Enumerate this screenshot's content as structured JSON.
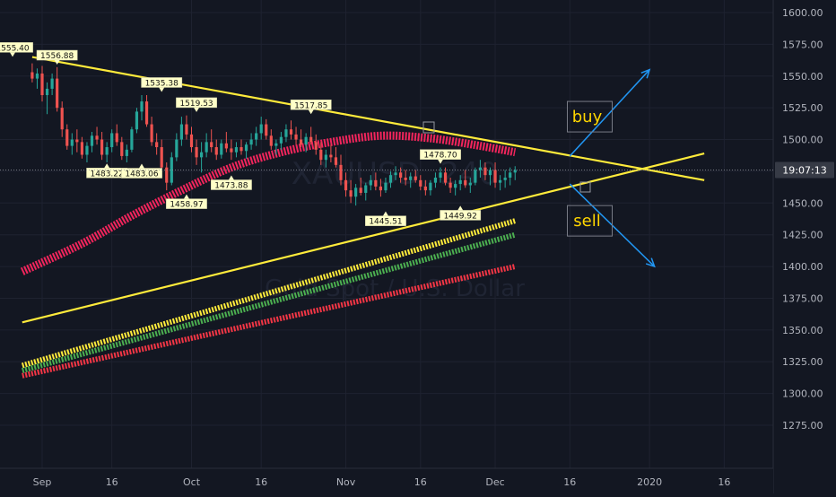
{
  "chart_data": {
    "type": "candlestick",
    "title": "",
    "xlabel": "",
    "ylabel": "",
    "ylim": [
      1263,
      1612
    ],
    "y_ticks": [
      "1600.00",
      "1575.00",
      "1550.00",
      "1525.00",
      "1500.00",
      "1475.00",
      "1450.00",
      "1425.00",
      "1400.00",
      "1375.00",
      "1350.00",
      "1325.00",
      "1300.00",
      "1275.00"
    ],
    "x_ticks": [
      {
        "label": "Sep",
        "day": 2
      },
      {
        "label": "16",
        "day": 16
      },
      {
        "label": "Oct",
        "day": 32
      },
      {
        "label": "16",
        "day": 46
      },
      {
        "label": "Nov",
        "day": 63
      },
      {
        "label": "16",
        "day": 78
      },
      {
        "label": "Dec",
        "day": 93
      },
      {
        "label": "16",
        "day": 108
      },
      {
        "label": "2020",
        "day": 124
      },
      {
        "label": "16",
        "day": 139
      }
    ],
    "current_price_label": "19:07:13",
    "current_price": 1476,
    "watermark": "XAUUSD, 240",
    "watermark_sub": "Gold Spot / U.S. Dollar",
    "annotations_price": [
      {
        "text": "1556.88",
        "day": 5,
        "value": 1556.88,
        "pos": "above"
      },
      {
        "text": "1535.38",
        "day": 26,
        "value": 1535.38,
        "pos": "above"
      },
      {
        "text": "1519.53",
        "day": 33,
        "value": 1519.53,
        "pos": "above"
      },
      {
        "text": "1517.85",
        "day": 56,
        "value": 1517.85,
        "pos": "above"
      },
      {
        "text": "1478.70",
        "day": 82,
        "value": 1478.7,
        "pos": "above"
      },
      {
        "text": "1483.22",
        "day": 15,
        "value": 1483.22,
        "pos": "below"
      },
      {
        "text": "1483.06",
        "day": 22,
        "value": 1483.06,
        "pos": "below"
      },
      {
        "text": "1473.88",
        "day": 40,
        "value": 1473.88,
        "pos": "below"
      },
      {
        "text": "1458.97",
        "day": 31,
        "value": 1458.97,
        "pos": "below"
      },
      {
        "text": "1445.51",
        "day": 71,
        "value": 1445.51,
        "pos": "below"
      },
      {
        "text": "1449.92",
        "day": 86,
        "value": 1449.92,
        "pos": "below"
      }
    ],
    "annotation_partial_left": "1555.40",
    "ohlc": [
      [
        0,
        1553,
        1560,
        1545,
        1548
      ],
      [
        1,
        1548,
        1556,
        1540,
        1552
      ],
      [
        2,
        1552,
        1558,
        1530,
        1535
      ],
      [
        3,
        1535,
        1545,
        1520,
        1540
      ],
      [
        4,
        1540,
        1552,
        1535,
        1548
      ],
      [
        5,
        1548,
        1557,
        1522,
        1525
      ],
      [
        6,
        1525,
        1530,
        1502,
        1508
      ],
      [
        7,
        1508,
        1512,
        1492,
        1495
      ],
      [
        8,
        1495,
        1505,
        1488,
        1500
      ],
      [
        9,
        1500,
        1508,
        1490,
        1498
      ],
      [
        10,
        1498,
        1502,
        1485,
        1488
      ],
      [
        11,
        1488,
        1498,
        1482,
        1495
      ],
      [
        12,
        1495,
        1506,
        1490,
        1503
      ],
      [
        13,
        1503,
        1510,
        1496,
        1500
      ],
      [
        14,
        1500,
        1506,
        1484,
        1488
      ],
      [
        15,
        1488,
        1498,
        1482,
        1494
      ],
      [
        16,
        1494,
        1508,
        1490,
        1505
      ],
      [
        17,
        1505,
        1512,
        1495,
        1498
      ],
      [
        18,
        1498,
        1502,
        1484,
        1487
      ],
      [
        19,
        1487,
        1496,
        1482,
        1492
      ],
      [
        20,
        1492,
        1510,
        1490,
        1508
      ],
      [
        21,
        1508,
        1525,
        1505,
        1522
      ],
      [
        22,
        1522,
        1535,
        1515,
        1530
      ],
      [
        23,
        1530,
        1535,
        1510,
        1512
      ],
      [
        24,
        1512,
        1518,
        1495,
        1498
      ],
      [
        25,
        1498,
        1505,
        1488,
        1494
      ],
      [
        26,
        1494,
        1500,
        1475,
        1478
      ],
      [
        27,
        1478,
        1482,
        1460,
        1466
      ],
      [
        28,
        1466,
        1490,
        1464,
        1486
      ],
      [
        29,
        1486,
        1505,
        1483,
        1500
      ],
      [
        30,
        1500,
        1518,
        1495,
        1512
      ],
      [
        31,
        1512,
        1519,
        1500,
        1504
      ],
      [
        32,
        1504,
        1510,
        1490,
        1494
      ],
      [
        33,
        1494,
        1500,
        1480,
        1486
      ],
      [
        34,
        1486,
        1498,
        1474,
        1490
      ],
      [
        35,
        1490,
        1505,
        1486,
        1498
      ],
      [
        36,
        1498,
        1508,
        1490,
        1494
      ],
      [
        37,
        1494,
        1500,
        1484,
        1488
      ],
      [
        38,
        1488,
        1500,
        1485,
        1497
      ],
      [
        39,
        1497,
        1506,
        1490,
        1493
      ],
      [
        40,
        1493,
        1500,
        1484,
        1490
      ],
      [
        41,
        1490,
        1498,
        1486,
        1494
      ],
      [
        42,
        1494,
        1500,
        1488,
        1491
      ],
      [
        43,
        1491,
        1498,
        1485,
        1496
      ],
      [
        44,
        1496,
        1505,
        1492,
        1500
      ],
      [
        45,
        1500,
        1510,
        1495,
        1505
      ],
      [
        46,
        1505,
        1518,
        1500,
        1512
      ],
      [
        47,
        1512,
        1516,
        1500,
        1503
      ],
      [
        48,
        1503,
        1508,
        1492,
        1495
      ],
      [
        49,
        1495,
        1500,
        1488,
        1497
      ],
      [
        50,
        1497,
        1506,
        1492,
        1502
      ],
      [
        51,
        1502,
        1512,
        1498,
        1508
      ],
      [
        52,
        1508,
        1515,
        1500,
        1504
      ],
      [
        53,
        1504,
        1510,
        1496,
        1500
      ],
      [
        54,
        1500,
        1508,
        1494,
        1496
      ],
      [
        55,
        1496,
        1505,
        1490,
        1502
      ],
      [
        56,
        1502,
        1510,
        1496,
        1498
      ],
      [
        57,
        1498,
        1504,
        1488,
        1492
      ],
      [
        58,
        1492,
        1498,
        1480,
        1484
      ],
      [
        59,
        1484,
        1492,
        1478,
        1488
      ],
      [
        60,
        1488,
        1496,
        1482,
        1486
      ],
      [
        61,
        1486,
        1494,
        1478,
        1480
      ],
      [
        62,
        1480,
        1488,
        1464,
        1468
      ],
      [
        63,
        1468,
        1474,
        1455,
        1460
      ],
      [
        64,
        1460,
        1468,
        1450,
        1455
      ],
      [
        65,
        1455,
        1465,
        1448,
        1462
      ],
      [
        66,
        1462,
        1470,
        1456,
        1458
      ],
      [
        67,
        1458,
        1466,
        1452,
        1464
      ],
      [
        68,
        1464,
        1472,
        1460,
        1468
      ],
      [
        69,
        1468,
        1474,
        1460,
        1463
      ],
      [
        70,
        1463,
        1469,
        1455,
        1460
      ],
      [
        71,
        1460,
        1470,
        1458,
        1466
      ],
      [
        72,
        1466,
        1475,
        1462,
        1472
      ],
      [
        73,
        1472,
        1479,
        1468,
        1474
      ],
      [
        74,
        1474,
        1478,
        1466,
        1470
      ],
      [
        75,
        1470,
        1476,
        1464,
        1468
      ],
      [
        76,
        1468,
        1474,
        1462,
        1471
      ],
      [
        77,
        1471,
        1476,
        1466,
        1468
      ],
      [
        78,
        1468,
        1472,
        1460,
        1463
      ],
      [
        79,
        1463,
        1468,
        1456,
        1460
      ],
      [
        80,
        1460,
        1468,
        1456,
        1466
      ],
      [
        81,
        1466,
        1474,
        1462,
        1470
      ],
      [
        82,
        1470,
        1478,
        1466,
        1474
      ],
      [
        83,
        1474,
        1478,
        1464,
        1466
      ],
      [
        84,
        1466,
        1470,
        1458,
        1462
      ],
      [
        85,
        1462,
        1468,
        1456,
        1465
      ],
      [
        86,
        1465,
        1472,
        1460,
        1468
      ],
      [
        87,
        1468,
        1476,
        1462,
        1464
      ],
      [
        88,
        1464,
        1470,
        1458,
        1466
      ],
      [
        89,
        1466,
        1478,
        1464,
        1476
      ],
      [
        90,
        1476,
        1484,
        1470,
        1478
      ],
      [
        91,
        1478,
        1482,
        1468,
        1472
      ],
      [
        92,
        1472,
        1478,
        1464,
        1476
      ],
      [
        93,
        1476,
        1482,
        1462,
        1466
      ],
      [
        94,
        1466,
        1472,
        1460,
        1468
      ],
      [
        95,
        1468,
        1476,
        1462,
        1470
      ],
      [
        96,
        1470,
        1478,
        1464,
        1474
      ],
      [
        97,
        1474,
        1479,
        1468,
        1476
      ]
    ],
    "series": [
      {
        "name": "",
        "color": "#f2255c",
        "points": [
          [
            -2,
            1396
          ],
          [
            10,
            1418
          ],
          [
            20,
            1440
          ],
          [
            30,
            1460
          ],
          [
            40,
            1478
          ],
          [
            50,
            1490
          ],
          [
            60,
            1498
          ],
          [
            70,
            1503
          ],
          [
            80,
            1501
          ],
          [
            90,
            1495
          ],
          [
            97,
            1490
          ]
        ]
      },
      {
        "name": "",
        "color": "#ffeb3b",
        "points": [
          [
            -2,
            1322
          ],
          [
            97,
            1436
          ]
        ]
      },
      {
        "name": "",
        "color": "#4caf50",
        "points": [
          [
            -2,
            1318
          ],
          [
            97,
            1425
          ]
        ]
      },
      {
        "name": "",
        "color": "#f23645",
        "points": [
          [
            -2,
            1314
          ],
          [
            97,
            1400
          ]
        ]
      }
    ],
    "trendlines": [
      {
        "color": "#ffeb3b",
        "from": [
          0,
          1565
        ],
        "to": [
          135,
          1468
        ]
      },
      {
        "color": "#ffeb3b",
        "from": [
          -2,
          1356
        ],
        "to": [
          135,
          1489
        ]
      }
    ],
    "text_boxes": [
      {
        "text": "buy",
        "day": 112,
        "value": 1518
      },
      {
        "text": "sell",
        "day": 112,
        "value": 1436
      }
    ],
    "arrows": [
      {
        "color": "#2196f3",
        "from": [
          108,
          1487
        ],
        "to": [
          124,
          1555
        ]
      },
      {
        "color": "#2196f3",
        "from": [
          108,
          1465
        ],
        "to": [
          125,
          1400
        ]
      }
    ],
    "colors": {
      "bg": "#131722",
      "up": "#26a69a",
      "down": "#ef5350",
      "grid": "#1e2230",
      "axis_text": "#b2b5be",
      "price_tag_bg": "#363a45",
      "annotation_bg": "#ffffc8"
    }
  }
}
